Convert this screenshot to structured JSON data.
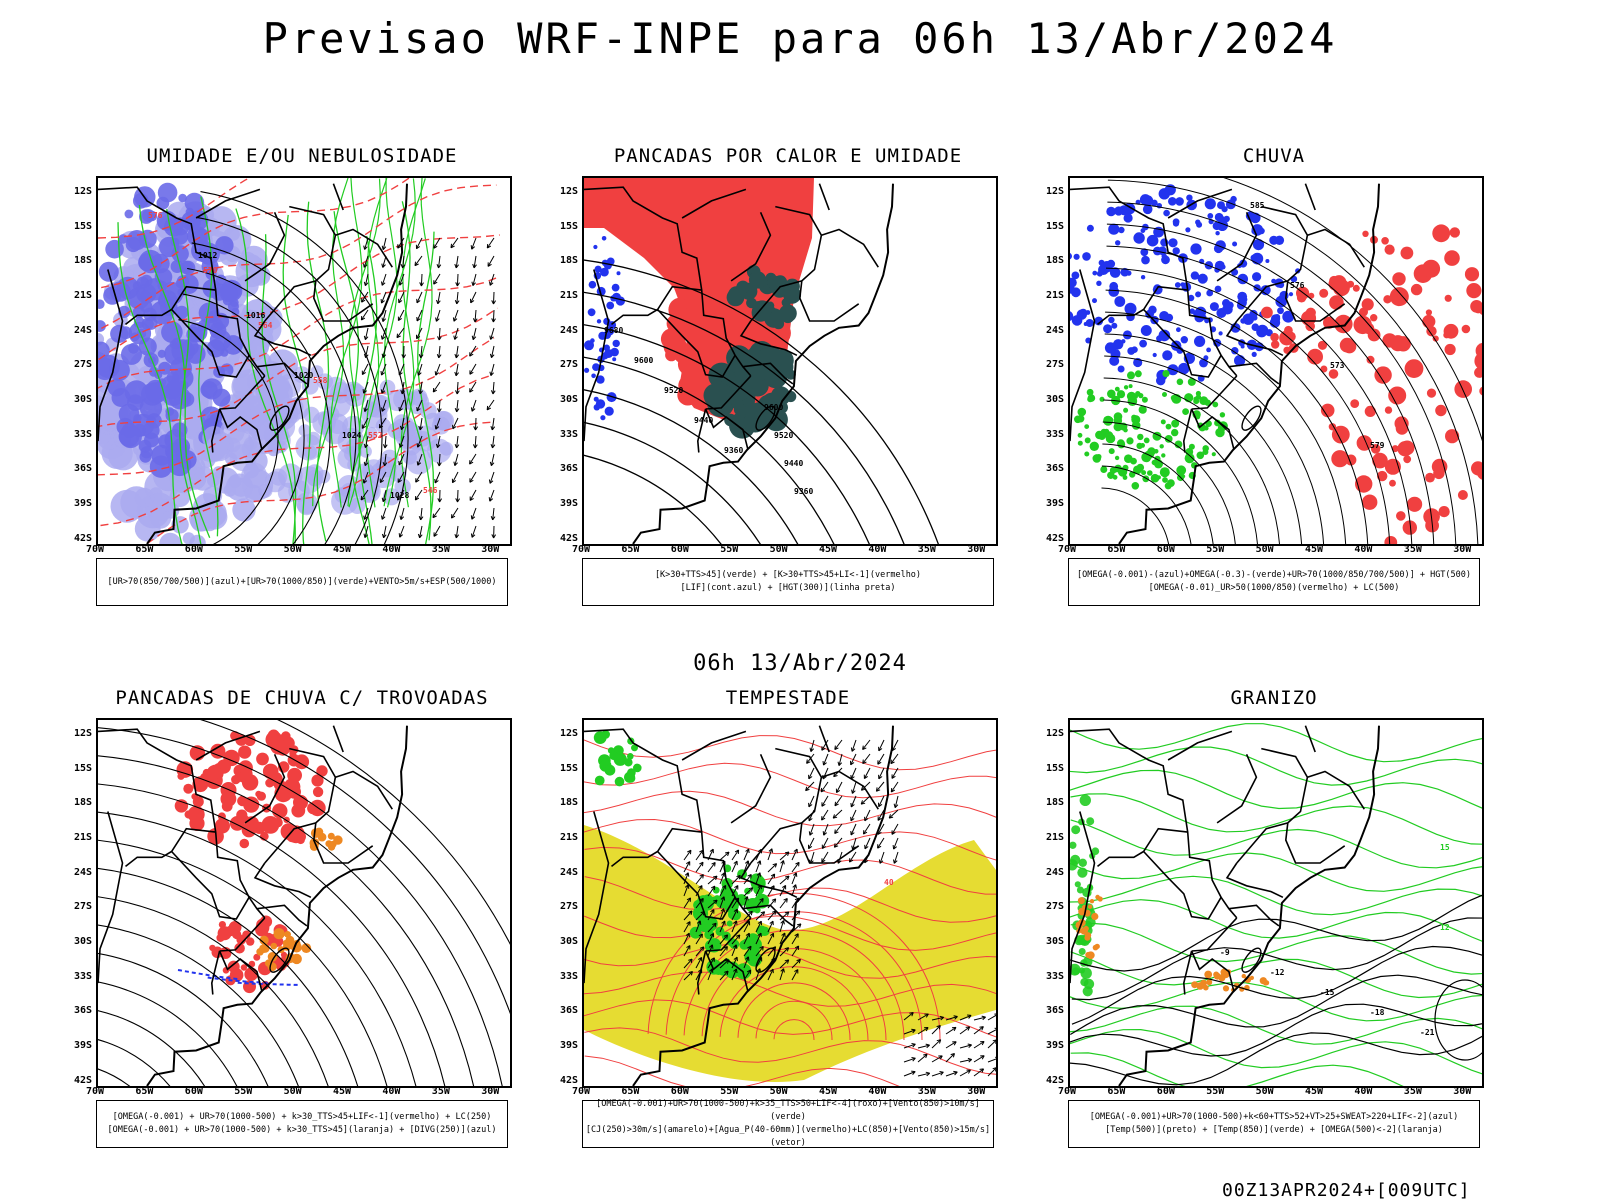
{
  "title": "Previsao WRF-INPE  para 06h 13/Abr/2024",
  "mid_date": "06h 13/Abr/2024",
  "run_stamp": "00Z13APR2024+[009UTC]",
  "axes": {
    "lat_labels": [
      "12S",
      "15S",
      "18S",
      "21S",
      "24S",
      "27S",
      "30S",
      "33S",
      "36S",
      "39S",
      "42S"
    ],
    "lon_labels": [
      "70W",
      "65W",
      "60W",
      "55W",
      "50W",
      "45W",
      "40W",
      "35W",
      "30W"
    ]
  },
  "panels": [
    {
      "id": "umidade",
      "title": "UMIDADE E/OU NEBULOSIDADE",
      "legend": [
        "[UR>70(850/700/500)](azul)+[UR>70(1000/850)](verde)+VENTO>5m/s+ESP(500/1000)"
      ],
      "contour_labels": [
        "1012",
        "1016",
        "1020",
        "1024",
        "1028",
        "576",
        "570",
        "564",
        "558",
        "552",
        "546"
      ]
    },
    {
      "id": "pancadas-calor",
      "title": "PANCADAS POR CALOR E UMIDADE",
      "legend": [
        "[K>30+TTS>45](verde) + [K>30+TTS>45+LI<-1](vermelho)",
        "[LIF](cont.azul) + [HGT(300)](linha preta)"
      ],
      "contour_labels": [
        "9680",
        "9600",
        "9520",
        "9440",
        "9360"
      ]
    },
    {
      "id": "chuva",
      "title": "CHUVA",
      "legend": [
        "[OMEGA(-0.001)-(azul)+OMEGA(-0.3)-(verde)+UR>70(1000/850/700/500)] + HGT(500)",
        "[OMEGA(-0.01)_UR>50(1000/850)(vermelho) + LC(500)"
      ],
      "contour_labels": [
        "585",
        "576",
        "573",
        "579"
      ]
    },
    {
      "id": "pancadas-trovoadas",
      "title": "PANCADAS DE CHUVA C/ TROVOADAS",
      "legend": [
        "[OMEGA(-0.001) + UR>70(1000-500) + k>30_TTS>45+LIF<-1](vermelho) + LC(250)",
        "[OMEGA(-0.001) + UR>70(1000-500) + k>30_TTS>45](laranja) + [DIVG(250)](azul)"
      ],
      "contour_labels": []
    },
    {
      "id": "tempestade",
      "title": "TEMPESTADE",
      "legend": [
        "[OMEGA(-0.001)+UR>70(1000-500)+k>35_TTS>50+LIF<-4](roxo)+[Vento(850)>10m/s](verde)",
        "[CJ(250)>30m/s](amarelo)+[Agua_P(40-60mm)](vermelho)+LC(850)+[Vento(850)>15m/s](vetor)"
      ],
      "contour_labels": [
        "40"
      ]
    },
    {
      "id": "granizo",
      "title": "GRANIZO",
      "legend": [
        "[OMEGA(-0.001)+UR>70(1000-500)+k<60+TTS>52+VT>25+SWEAT>220+LIF<-2](azul)",
        "[Temp(500)](preto) + [Temp(850)](verde) + [OMEGA(500)<-2](laranja)"
      ],
      "contour_labels": [
        "-9",
        "-12",
        "-15",
        "-18",
        "-21",
        "15",
        "12"
      ]
    }
  ],
  "colors": {
    "red": "#f04040",
    "green": "#22cc22",
    "blue": "#2233ee",
    "lightblue": "#aaaaf0",
    "yellow": "#e6dc32",
    "orange": "#ee8822",
    "darkteal": "#2a5050"
  }
}
